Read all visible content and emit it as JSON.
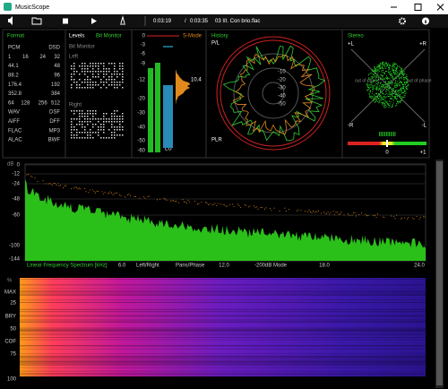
{
  "window": {
    "title": "MusicScope"
  },
  "toolbar": {
    "elapsed": "0:03:19",
    "separator": "/",
    "total": "0:03:35",
    "file": "03 III. Con brio.flac"
  },
  "format": {
    "title": "Format",
    "rows": [
      [
        "PCM",
        "DSD"
      ],
      [
        "1",
        "16",
        "24",
        "32"
      ],
      [
        "44.1",
        "48"
      ],
      [
        "88.2",
        "96"
      ],
      [
        "176.4",
        "192"
      ],
      [
        "352.8",
        "384"
      ],
      [
        "64",
        "128",
        "256",
        "512"
      ],
      [
        "WAV",
        "DSF"
      ],
      [
        "AIFF",
        "DFF"
      ],
      [
        "FLAC",
        "MP3"
      ],
      [
        "ALAC",
        "BWF"
      ]
    ]
  },
  "levels": {
    "title": "Levels",
    "subtitle": "Bit Monitor",
    "header": "Bit Monitor",
    "left": "Left",
    "right": "Right"
  },
  "meter": {
    "mode": "S-Mode",
    "scale": [
      "0",
      "-3",
      "-6",
      "-9",
      "-12",
      "-20",
      "-30",
      "-40",
      "-50",
      "-60"
    ],
    "readout": "10.4",
    "unit": "LU"
  },
  "history": {
    "title": "History",
    "top": "P/L",
    "bottom": "PLR",
    "rings": [
      "-10",
      "-20",
      "-30",
      "-40",
      "-50"
    ]
  },
  "stereo": {
    "title": "Stereo",
    "top_left": "+L",
    "top_right": "+R",
    "bottom_left": "-R",
    "bottom_right": "-L",
    "left_note": "out of phase",
    "right_note": "out of phase",
    "zero": "0",
    "plus": "+1"
  },
  "spectrum": {
    "unit": "dB",
    "yticks": [
      "0",
      "-12",
      "-24",
      "-48",
      "-60",
      "-100",
      "-144"
    ],
    "xlabel": "Linear Frequency Spectrum [kHz]",
    "xticks": [
      "6.0",
      "12.0",
      "18.0",
      "24.0"
    ],
    "modes": [
      "Left/Right",
      "Pans/Phase",
      "-200dB Mode"
    ]
  },
  "spectrogram": {
    "unit": "%",
    "labels": [
      "MAX",
      "25",
      "BRY",
      "50",
      "COF",
      "75",
      "100"
    ]
  }
}
